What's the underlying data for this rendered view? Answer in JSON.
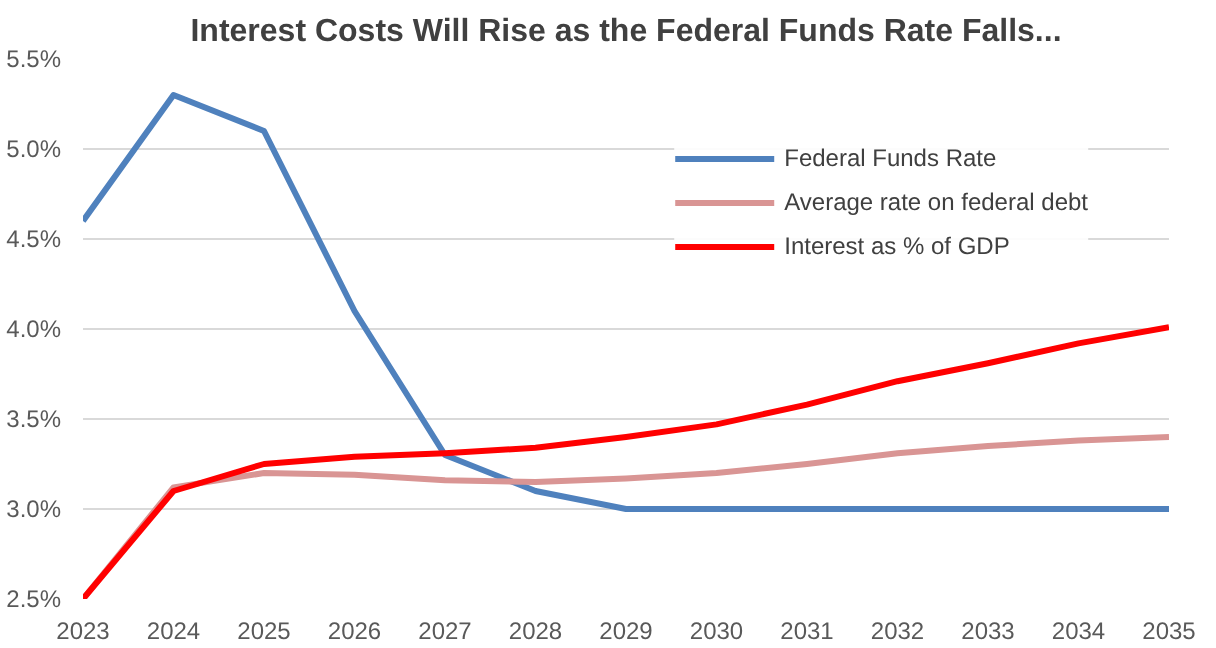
{
  "chart_data": {
    "type": "line",
    "title": "Interest Costs Will Rise as the Federal Funds Rate Falls...",
    "categories": [
      "2023",
      "2024",
      "2025",
      "2026",
      "2027",
      "2028",
      "2029",
      "2030",
      "2031",
      "2032",
      "2033",
      "2034",
      "2035"
    ],
    "series": [
      {
        "name": "Federal Funds Rate",
        "color": "#4f81bd",
        "values": [
          4.6,
          5.3,
          5.1,
          4.1,
          3.3,
          3.1,
          3.0,
          3.0,
          3.0,
          3.0,
          3.0,
          3.0,
          3.0
        ]
      },
      {
        "name": "Average rate on federal debt",
        "color": "#d99594",
        "values": [
          2.5,
          3.12,
          3.2,
          3.19,
          3.16,
          3.15,
          3.17,
          3.2,
          3.25,
          3.31,
          3.35,
          3.38,
          3.4
        ]
      },
      {
        "name": "Interest as % of GDP",
        "color": "#ff0000",
        "values": [
          2.5,
          3.1,
          3.25,
          3.29,
          3.31,
          3.34,
          3.4,
          3.47,
          3.58,
          3.71,
          3.81,
          3.92,
          4.01
        ]
      }
    ],
    "ylim": [
      2.5,
      5.5
    ],
    "yticks": [
      {
        "value": 2.5,
        "label": "2.5%"
      },
      {
        "value": 3.0,
        "label": "3.0%"
      },
      {
        "value": 3.5,
        "label": "3.5%"
      },
      {
        "value": 4.0,
        "label": "4.0%"
      },
      {
        "value": 4.5,
        "label": "4.5%"
      },
      {
        "value": 5.0,
        "label": "5.0%"
      },
      {
        "value": 5.5,
        "label": "5.5%"
      }
    ],
    "grid": "y",
    "legend": "top right",
    "marker": "none",
    "line_style": "solid"
  }
}
